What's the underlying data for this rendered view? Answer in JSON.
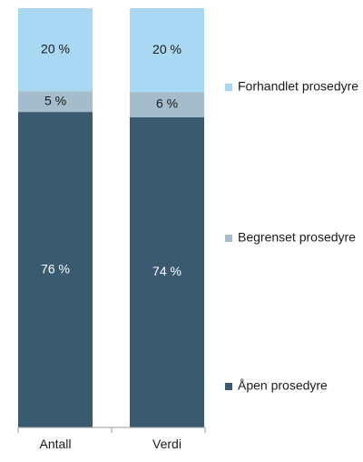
{
  "chart_data": {
    "type": "bar",
    "stacked": true,
    "categories": [
      "Antall",
      "Verdi"
    ],
    "series": [
      {
        "name": "Åpen prosedyre",
        "values": [
          76,
          74
        ],
        "labels": [
          "76 %",
          "74 %"
        ],
        "color": "#3a5a70",
        "label_color": "#ffffff"
      },
      {
        "name": "Begrenset prosedyre",
        "values": [
          5,
          6
        ],
        "labels": [
          "5 %",
          "6 %"
        ],
        "color": "#a4bccb",
        "label_color": "#1a1a1a"
      },
      {
        "name": "Forhandlet prosedyre",
        "values": [
          20,
          20
        ],
        "labels": [
          "20 %",
          "20 %"
        ],
        "color": "#a8d8f2",
        "label_color": "#1a1a1a"
      }
    ],
    "legend_position": "right",
    "axis_color": "#9a9a9a"
  }
}
